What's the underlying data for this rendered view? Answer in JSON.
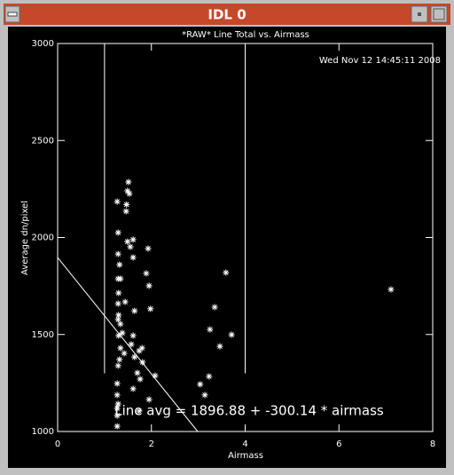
{
  "window": {
    "title": "IDL 0"
  },
  "chart_data": {
    "type": "scatter",
    "title": "*RAW* Line Total vs. Airmass",
    "timestamp": "Wed Nov 12 14:45:11 2008",
    "x_label": "Airmass",
    "y_label": "Average dn/pixel",
    "annotation": "Line avg = 1896.88 + -300.14 * airmass",
    "color": "#ffffff",
    "x": [
      1.27,
      1.29,
      1.29,
      1.32,
      1.29,
      1.34,
      1.3,
      1.29,
      1.3,
      1.29,
      1.34,
      1.3,
      1.34,
      1.32,
      1.29,
      1.27,
      1.27,
      1.27,
      1.27,
      1.27,
      1.29,
      1.38,
      1.42,
      1.44,
      1.46,
      1.49,
      1.51,
      1.53,
      1.49,
      1.55,
      1.61,
      1.61,
      1.64,
      1.61,
      1.64,
      1.61,
      1.7,
      1.74,
      1.8,
      1.81,
      1.76,
      1.74,
      1.95,
      1.89,
      1.95,
      1.98,
      1.93,
      2.08,
      3.04,
      3.14,
      3.23,
      3.35,
      3.25,
      3.46,
      3.59,
      3.71,
      7.11,
      1.57,
      1.47
    ],
    "values": [
      2185,
      2025,
      1915,
      1860,
      1787,
      1787,
      1714,
      1659,
      1600,
      1577,
      1554,
      1494,
      1430,
      1371,
      1339,
      1247,
      1188,
      1119,
      1082,
      1027,
      1142,
      1508,
      1403,
      1668,
      2135,
      2240,
      2286,
      2226,
      1979,
      1952,
      1989,
      1897,
      1622,
      1494,
      1384,
      1220,
      1302,
      1416,
      1430,
      1357,
      1270,
      1105,
      1165,
      1815,
      1751,
      1632,
      1943,
      1288,
      1243,
      1188,
      1284,
      1641,
      1526,
      1439,
      1819,
      1499,
      1732,
      1449,
      2170
    ],
    "fit_line": {
      "x": [
        0,
        2.988
      ],
      "values": [
        1896.88,
        1000
      ]
    },
    "vlines": [
      {
        "x": 1,
        "values": [
          1300,
          3000
        ]
      },
      {
        "x": 4,
        "values": [
          1300,
          3000
        ]
      }
    ],
    "xlim": [
      0,
      8
    ],
    "xticks": [
      0,
      2,
      4,
      6,
      8
    ],
    "ylim": [
      1000,
      3000
    ],
    "yticks": [
      1000,
      1500,
      2000,
      2500,
      3000
    ]
  }
}
